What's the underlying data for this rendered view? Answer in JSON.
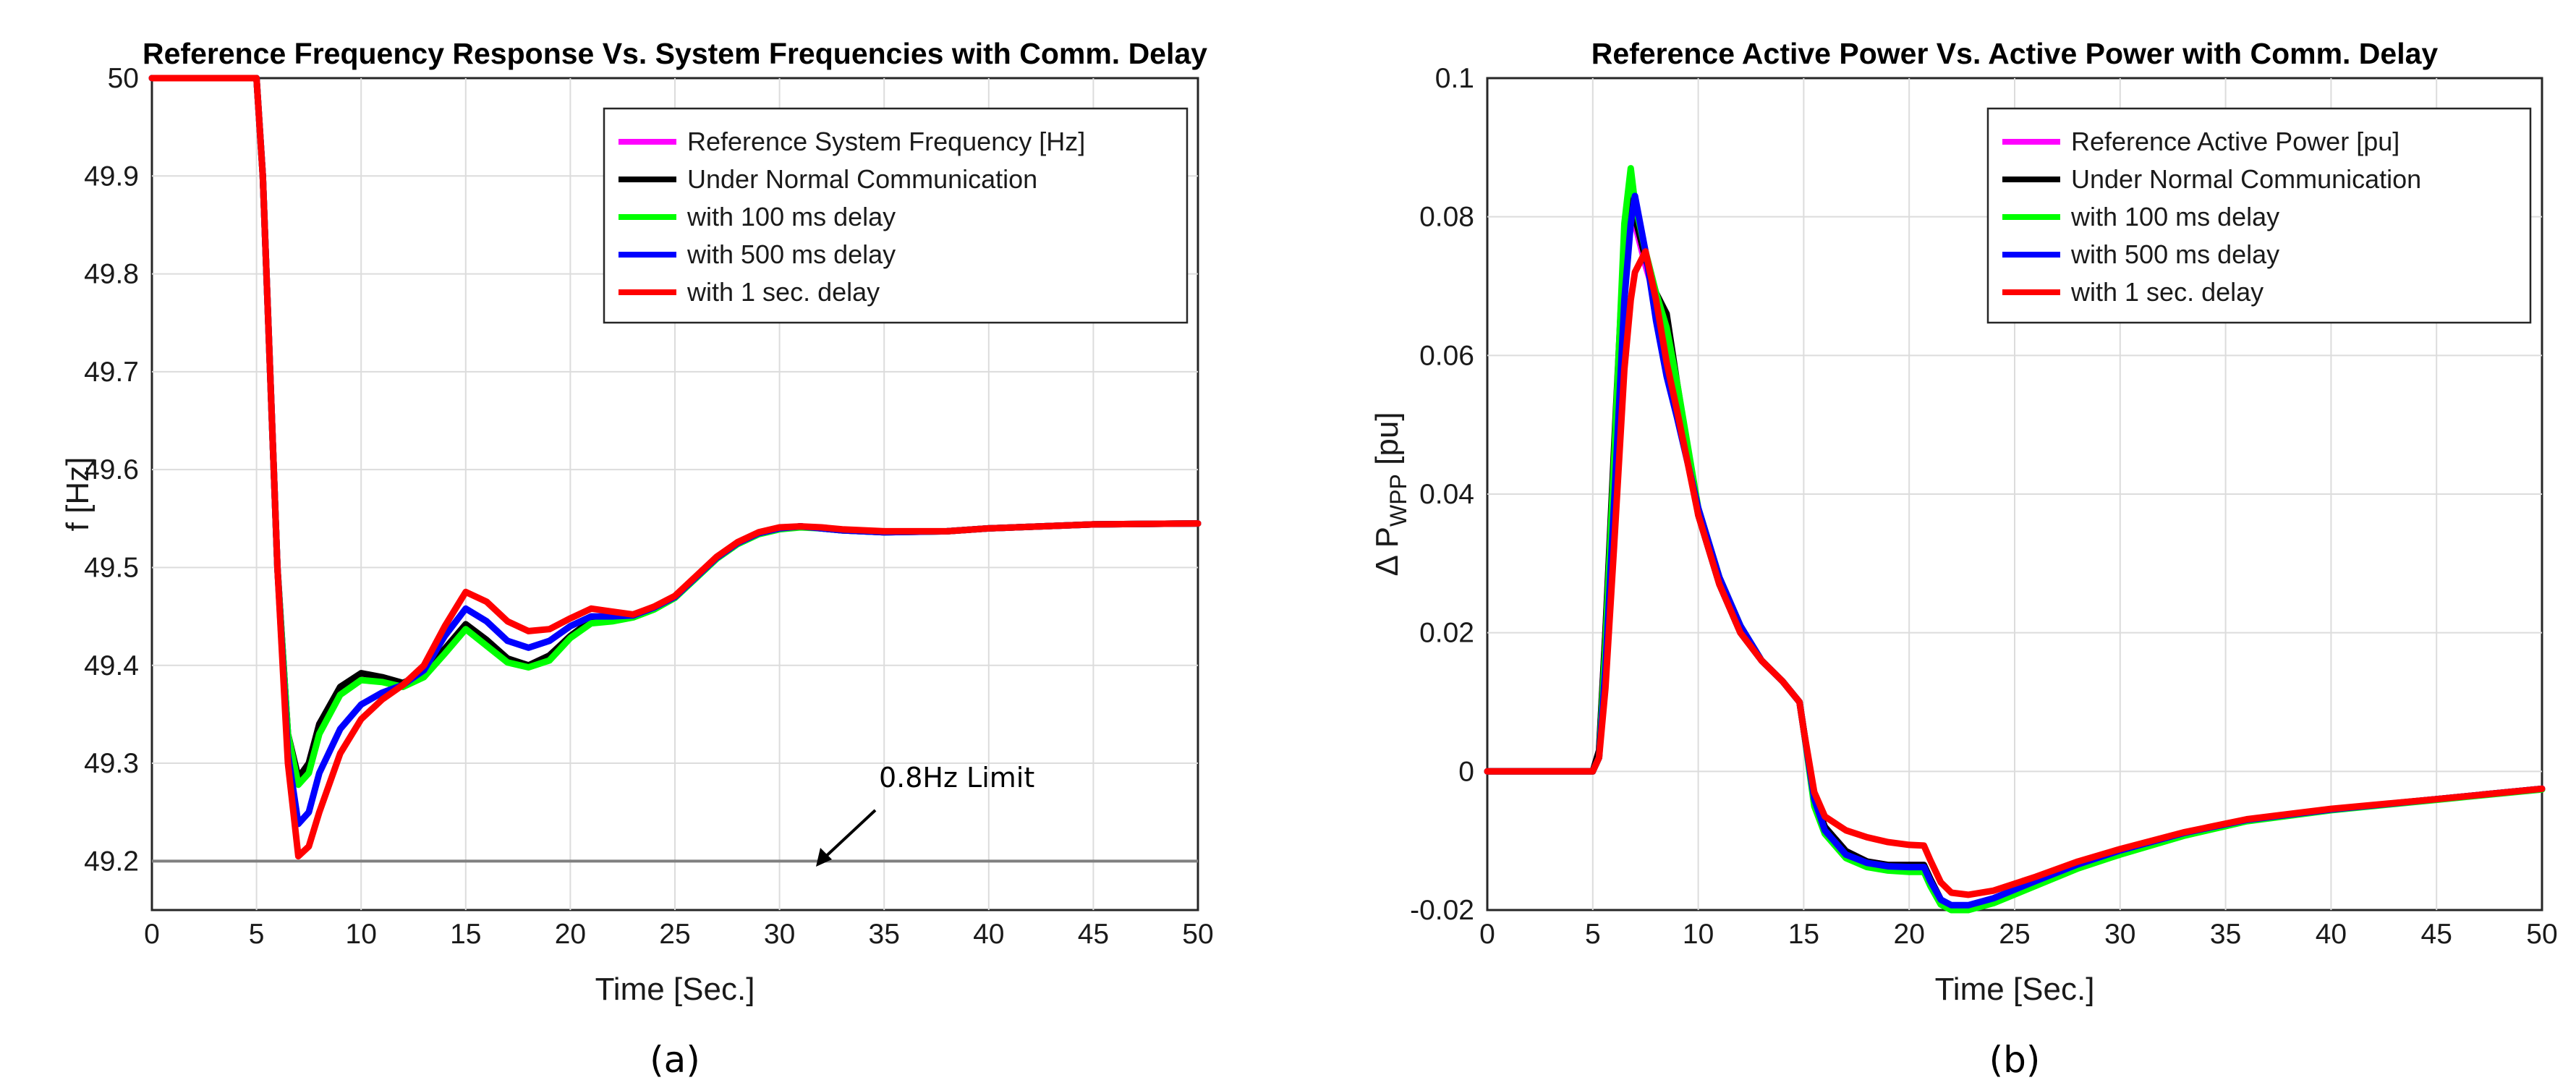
{
  "panels": [
    {
      "caption": "(a)",
      "chart_data": {
        "type": "line",
        "title": "Reference Frequency Response Vs. System Frequencies with Comm. Delay",
        "xlabel": "Time [Sec.]",
        "ylabel": "f [Hz]",
        "xlim": [
          0,
          50
        ],
        "ylim": [
          49.15,
          50
        ],
        "xticks": [
          "0",
          "5",
          "10",
          "15",
          "20",
          "25",
          "30",
          "35",
          "40",
          "45",
          "50"
        ],
        "yticks": [
          "49.2",
          "49.3",
          "49.4",
          "49.5",
          "49.6",
          "49.7",
          "49.8",
          "49.9",
          "50"
        ],
        "grid": true,
        "legend_position": "top-right",
        "limit_line": {
          "y": 49.2,
          "color": "#808080"
        },
        "annotation": {
          "text": "0.8Hz Limit",
          "x": 31.5,
          "y": 49.2
        },
        "series": [
          {
            "name": "Reference System Frequency [Hz]",
            "color": "#ff00ff",
            "x": [
              0,
              5,
              5.3,
              6,
              6.5,
              7,
              7.5,
              8,
              9,
              10,
              11,
              12,
              13,
              14,
              15,
              16,
              17,
              18,
              19,
              20,
              21,
              22,
              23,
              24,
              25,
              26,
              27,
              28,
              29,
              30,
              31,
              32,
              33,
              35,
              38,
              40,
              45,
              50
            ],
            "y": [
              50,
              50,
              49.9,
              49.5,
              49.33,
              49.285,
              49.3,
              49.34,
              49.375,
              49.39,
              49.385,
              49.38,
              49.39,
              49.415,
              49.44,
              49.425,
              49.405,
              49.4,
              49.41,
              49.43,
              49.445,
              49.447,
              49.45,
              49.458,
              49.47,
              49.49,
              49.51,
              49.525,
              49.535,
              49.54,
              49.542,
              49.54,
              49.538,
              49.536,
              49.537,
              49.54,
              49.544,
              49.545
            ]
          },
          {
            "name": "Under Normal Communication",
            "color": "#000000",
            "x": [
              0,
              5,
              5.3,
              6,
              6.5,
              7,
              7.5,
              8,
              9,
              10,
              11,
              12,
              13,
              14,
              15,
              16,
              17,
              18,
              19,
              20,
              21,
              22,
              23,
              24,
              25,
              26,
              27,
              28,
              29,
              30,
              31,
              32,
              33,
              35,
              38,
              40,
              45,
              50
            ],
            "y": [
              50,
              50,
              49.9,
              49.5,
              49.33,
              49.285,
              49.3,
              49.34,
              49.378,
              49.392,
              49.388,
              49.382,
              49.392,
              49.417,
              49.442,
              49.426,
              49.407,
              49.4,
              49.41,
              49.43,
              49.446,
              49.448,
              49.45,
              49.458,
              49.47,
              49.49,
              49.51,
              49.525,
              49.535,
              49.54,
              49.542,
              49.54,
              49.538,
              49.536,
              49.537,
              49.54,
              49.544,
              49.545
            ]
          },
          {
            "name": "with 100 ms delay",
            "color": "#00ff00",
            "x": [
              0,
              5,
              5.3,
              6,
              6.5,
              7,
              7.5,
              8,
              9,
              10,
              11,
              12,
              13,
              14,
              15,
              16,
              17,
              18,
              19,
              20,
              21,
              22,
              23,
              24,
              25,
              26,
              27,
              28,
              29,
              30,
              31,
              32,
              33,
              35,
              38,
              40,
              45,
              50
            ],
            "y": [
              50,
              50,
              49.9,
              49.5,
              49.33,
              49.278,
              49.29,
              49.33,
              49.37,
              49.385,
              49.383,
              49.378,
              49.388,
              49.412,
              49.437,
              49.42,
              49.403,
              49.398,
              49.405,
              49.428,
              49.443,
              49.445,
              49.449,
              49.457,
              49.469,
              49.489,
              49.509,
              49.524,
              49.534,
              49.539,
              49.541,
              49.54,
              49.538,
              49.536,
              49.537,
              49.54,
              49.544,
              49.545
            ]
          },
          {
            "name": "with 500 ms delay",
            "color": "#0000ff",
            "x": [
              0,
              5,
              5.3,
              6,
              6.5,
              7,
              7.5,
              8,
              9,
              10,
              11,
              12,
              13,
              14,
              15,
              16,
              17,
              18,
              19,
              20,
              21,
              22,
              23,
              24,
              25,
              26,
              27,
              28,
              29,
              30,
              31,
              32,
              33,
              35,
              38,
              40,
              45,
              50
            ],
            "y": [
              50,
              50,
              49.9,
              49.5,
              49.31,
              49.238,
              49.25,
              49.29,
              49.335,
              49.36,
              49.372,
              49.38,
              49.395,
              49.43,
              49.458,
              49.445,
              49.425,
              49.418,
              49.425,
              49.44,
              49.45,
              49.45,
              49.451,
              49.459,
              49.47,
              49.49,
              49.51,
              49.525,
              49.535,
              49.54,
              49.542,
              49.54,
              49.538,
              49.536,
              49.537,
              49.54,
              49.544,
              49.545
            ]
          },
          {
            "name": "with 1 sec. delay",
            "color": "#ff0000",
            "x": [
              0,
              5,
              5.3,
              6,
              6.5,
              7,
              7.5,
              8,
              9,
              10,
              11,
              12,
              13,
              14,
              15,
              16,
              17,
              18,
              19,
              20,
              21,
              22,
              23,
              24,
              25,
              26,
              27,
              28,
              29,
              30,
              31,
              32,
              33,
              35,
              38,
              40,
              45,
              50
            ],
            "y": [
              50,
              50,
              49.9,
              49.5,
              49.3,
              49.205,
              49.215,
              49.25,
              49.31,
              49.345,
              49.365,
              49.38,
              49.4,
              49.44,
              49.475,
              49.465,
              49.445,
              49.435,
              49.437,
              49.448,
              49.458,
              49.455,
              49.452,
              49.46,
              49.471,
              49.491,
              49.511,
              49.526,
              49.536,
              49.541,
              49.542,
              49.541,
              49.539,
              49.537,
              49.537,
              49.54,
              49.544,
              49.545
            ]
          }
        ]
      }
    },
    {
      "caption": "(b)",
      "chart_data": {
        "type": "line",
        "title": "Reference Active Power Vs. Active Power with Comm. Delay",
        "xlabel": "Time [Sec.]",
        "ylabel_main": "Δ P",
        "ylabel_sub": "WPP",
        "ylabel_unit": " [pu]",
        "xlim": [
          0,
          50
        ],
        "ylim": [
          -0.02,
          0.1
        ],
        "xticks": [
          "0",
          "5",
          "10",
          "15",
          "20",
          "25",
          "30",
          "35",
          "40",
          "45",
          "50"
        ],
        "yticks": [
          "-0.02",
          "0",
          "0.02",
          "0.04",
          "0.06",
          "0.08",
          "0.1"
        ],
        "grid": true,
        "legend_position": "top-right",
        "series": [
          {
            "name": "Reference Active Power [pu]",
            "color": "#ff00ff",
            "x": [
              0,
              5,
              5.3,
              5.6,
              6,
              6.5,
              6.8,
              7,
              7.5,
              8,
              8.5,
              9,
              10,
              11,
              12,
              13,
              14,
              14.8,
              15,
              15.5,
              16,
              17,
              18,
              19,
              20,
              20.7,
              21,
              21.5,
              22,
              22.8,
              24,
              26,
              28,
              30,
              33,
              36,
              40,
              45,
              50
            ],
            "y": [
              0,
              0,
              0.003,
              0.02,
              0.045,
              0.075,
              0.083,
              0.079,
              0.073,
              0.068,
              0.064,
              0.055,
              0.037,
              0.027,
              0.02,
              0.016,
              0.013,
              0.01,
              0.006,
              -0.004,
              -0.008,
              -0.0115,
              -0.013,
              -0.0135,
              -0.0135,
              -0.0135,
              -0.0155,
              -0.0185,
              -0.0195,
              -0.0195,
              -0.0185,
              -0.016,
              -0.0135,
              -0.0115,
              -0.009,
              -0.007,
              -0.0055,
              -0.004,
              -0.0025
            ]
          },
          {
            "name": "Under Normal Communication",
            "color": "#000000",
            "x": [
              0,
              5,
              5.3,
              5.6,
              6,
              6.5,
              6.8,
              7,
              7.5,
              8,
              8.5,
              9,
              10,
              11,
              12,
              13,
              14,
              14.8,
              15,
              15.5,
              16,
              17,
              18,
              19,
              20,
              20.7,
              21,
              21.5,
              22,
              22.8,
              24,
              26,
              28,
              30,
              33,
              36,
              40,
              45,
              50
            ],
            "y": [
              0,
              0,
              0.003,
              0.02,
              0.046,
              0.077,
              0.085,
              0.08,
              0.074,
              0.069,
              0.066,
              0.056,
              0.037,
              0.027,
              0.02,
              0.016,
              0.013,
              0.01,
              0.006,
              -0.004,
              -0.008,
              -0.0115,
              -0.013,
              -0.0135,
              -0.0135,
              -0.0135,
              -0.0155,
              -0.0185,
              -0.0195,
              -0.0195,
              -0.0185,
              -0.016,
              -0.0135,
              -0.0115,
              -0.009,
              -0.007,
              -0.0055,
              -0.004,
              -0.0025
            ]
          },
          {
            "name": "with 100 ms delay",
            "color": "#00ff00",
            "x": [
              0,
              5,
              5.3,
              5.6,
              6,
              6.5,
              6.8,
              7,
              7.5,
              8,
              8.5,
              9,
              10,
              11,
              12,
              13,
              14,
              14.8,
              15,
              15.5,
              16,
              17,
              18,
              19,
              20,
              20.7,
              21,
              21.5,
              22,
              22.8,
              24,
              26,
              28,
              30,
              33,
              36,
              40,
              45,
              50
            ],
            "y": [
              0,
              0,
              0.002,
              0.018,
              0.044,
              0.079,
              0.087,
              0.082,
              0.075,
              0.069,
              0.064,
              0.056,
              0.038,
              0.028,
              0.021,
              0.016,
              0.013,
              0.01,
              0.006,
              -0.005,
              -0.009,
              -0.0125,
              -0.0138,
              -0.0143,
              -0.0145,
              -0.0145,
              -0.0165,
              -0.0192,
              -0.02,
              -0.02,
              -0.019,
              -0.0165,
              -0.014,
              -0.012,
              -0.0093,
              -0.0072,
              -0.0056,
              -0.0041,
              -0.0026
            ]
          },
          {
            "name": "with 500 ms delay",
            "color": "#0000ff",
            "x": [
              0,
              5,
              5.3,
              5.6,
              6,
              6.5,
              6.8,
              7,
              7.5,
              8,
              8.5,
              9,
              10,
              11,
              12,
              13,
              14,
              14.8,
              15,
              15.5,
              16,
              17,
              18,
              19,
              20,
              20.7,
              21,
              21.5,
              22,
              22.8,
              24,
              26,
              28,
              30,
              33,
              36,
              40,
              45,
              50
            ],
            "y": [
              0,
              0,
              0.002,
              0.015,
              0.038,
              0.068,
              0.079,
              0.083,
              0.075,
              0.065,
              0.057,
              0.051,
              0.038,
              0.028,
              0.021,
              0.016,
              0.013,
              0.01,
              0.006,
              -0.004,
              -0.0085,
              -0.012,
              -0.0132,
              -0.0137,
              -0.0138,
              -0.0138,
              -0.0158,
              -0.0185,
              -0.0193,
              -0.0193,
              -0.0183,
              -0.0158,
              -0.0134,
              -0.0114,
              -0.0089,
              -0.007,
              -0.0055,
              -0.004,
              -0.0025
            ]
          },
          {
            "name": "with 1 sec. delay",
            "color": "#ff0000",
            "x": [
              0,
              5,
              5.3,
              5.6,
              6,
              6.5,
              6.8,
              7,
              7.5,
              8,
              8.5,
              9,
              10,
              11,
              12,
              13,
              14,
              14.8,
              15,
              15.5,
              16,
              17,
              18,
              19,
              20,
              20.7,
              21,
              21.5,
              22,
              22.8,
              24,
              26,
              28,
              30,
              33,
              36,
              40,
              45,
              50
            ],
            "y": [
              0,
              0,
              0.002,
              0.012,
              0.032,
              0.058,
              0.068,
              0.072,
              0.075,
              0.068,
              0.059,
              0.052,
              0.037,
              0.027,
              0.02,
              0.016,
              0.013,
              0.01,
              0.006,
              -0.003,
              -0.0065,
              -0.0085,
              -0.0095,
              -0.0102,
              -0.0106,
              -0.0107,
              -0.0128,
              -0.016,
              -0.0175,
              -0.0178,
              -0.0172,
              -0.0152,
              -0.013,
              -0.0112,
              -0.0088,
              -0.0069,
              -0.0054,
              -0.004,
              -0.0025
            ]
          }
        ]
      }
    }
  ]
}
